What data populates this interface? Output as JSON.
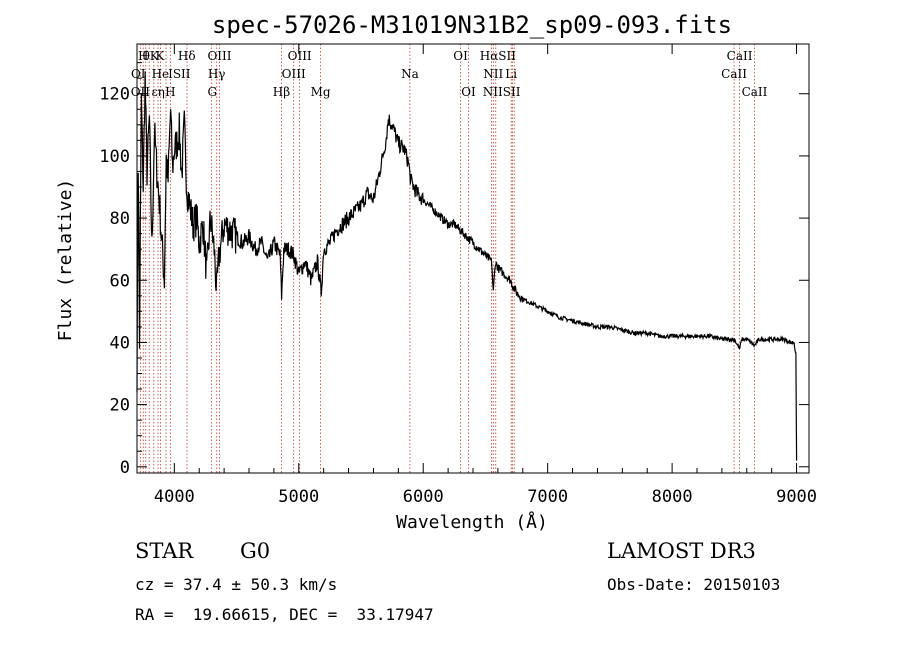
{
  "chart_data": {
    "type": "line",
    "title": "spec-57026-M31019N31B2_sp09-093.fits",
    "xlabel": "Wavelength (Å)",
    "ylabel": "Flux (relative)",
    "xlim": [
      3700,
      9100
    ],
    "ylim": [
      -2,
      136
    ],
    "xticks": [
      4000,
      5000,
      6000,
      7000,
      8000,
      9000
    ],
    "yticks": [
      0,
      20,
      40,
      60,
      80,
      100,
      120
    ],
    "series": [
      {
        "name": "flux",
        "x": [
          3700,
          3710,
          3720,
          3735,
          3750,
          3765,
          3780,
          3800,
          3820,
          3840,
          3860,
          3880,
          3900,
          3920,
          3935,
          3950,
          3970,
          3985,
          4000,
          4020,
          4040,
          4060,
          4080,
          4100,
          4120,
          4150,
          4180,
          4200,
          4230,
          4260,
          4290,
          4320,
          4340,
          4360,
          4400,
          4450,
          4500,
          4550,
          4600,
          4650,
          4700,
          4750,
          4800,
          4850,
          4862,
          4880,
          4920,
          4960,
          5000,
          5050,
          5100,
          5150,
          5180,
          5200,
          5250,
          5300,
          5350,
          5400,
          5450,
          5500,
          5550,
          5600,
          5650,
          5700,
          5720,
          5750,
          5800,
          5850,
          5880,
          5900,
          5950,
          6000,
          6050,
          6100,
          6150,
          6200,
          6250,
          6300,
          6350,
          6400,
          6450,
          6500,
          6550,
          6563,
          6580,
          6600,
          6650,
          6700,
          6750,
          6800,
          6900,
          7000,
          7100,
          7200,
          7300,
          7400,
          7500,
          7600,
          7700,
          7800,
          7900,
          8000,
          8100,
          8200,
          8300,
          8400,
          8500,
          8542,
          8560,
          8600,
          8662,
          8700,
          8800,
          8900,
          8950,
          8980,
          8995,
          9000
        ],
        "y": [
          30,
          98,
          40,
          118,
          90,
          125,
          95,
          112,
          70,
          108,
          95,
          85,
          72,
          60,
          100,
          92,
          115,
          96,
          102,
          104,
          108,
          94,
          110,
          90,
          85,
          78,
          80,
          72,
          78,
          62,
          80,
          70,
          56,
          68,
          78,
          76,
          74,
          72,
          74,
          70,
          72,
          66,
          72,
          68,
          55,
          70,
          70,
          68,
          62,
          66,
          60,
          66,
          56,
          70,
          72,
          76,
          78,
          80,
          82,
          84,
          88,
          86,
          95,
          105,
          112,
          110,
          104,
          102,
          98,
          92,
          88,
          86,
          84,
          82,
          80,
          78,
          78,
          76,
          74,
          72,
          70,
          68,
          66,
          56,
          66,
          64,
          62,
          60,
          56,
          54,
          52,
          50,
          48,
          47,
          46,
          45,
          45,
          44,
          43,
          43,
          42,
          42,
          42,
          42,
          42,
          41,
          41,
          38,
          41,
          41,
          39,
          41,
          41,
          41,
          40,
          40,
          36,
          2
        ]
      }
    ],
    "lines_row1": [
      {
        "label": "H",
        "x": 3750
      },
      {
        "label": "θK",
        "x": 3810
      },
      {
        "label": "K",
        "x": 3885
      },
      {
        "label": "Hδ",
        "x": 4100
      },
      {
        "label": "OIII",
        "x": 4363
      },
      {
        "label": "OIII",
        "x": 5007
      },
      {
        "label": "OI",
        "x": 6300
      },
      {
        "label": "HαSII",
        "x": 6600
      }
    ],
    "lines_row2": [
      {
        "label": "OI",
        "x": 3710
      },
      {
        "label": "He",
        "x": 3888
      },
      {
        "label": "ISII",
        "x": 4040
      },
      {
        "label": "Hγ",
        "x": 4340
      },
      {
        "label": "OIII",
        "x": 4959
      },
      {
        "label": "Na",
        "x": 5893
      },
      {
        "label": "NII",
        "x": 6563
      },
      {
        "label": "Li",
        "x": 6707
      }
    ],
    "lines_row3": [
      {
        "label": "OII",
        "x": 3727
      },
      {
        "label": "εη",
        "x": 3870
      },
      {
        "label": "H",
        "x": 3968
      },
      {
        "label": "G",
        "x": 4305
      },
      {
        "label": "Hβ",
        "x": 4861
      },
      {
        "label": "Mg",
        "x": 5175
      },
      {
        "label": "OI",
        "x": 6364
      },
      {
        "label": "NIISII",
        "x": 6630
      }
    ],
    "lines_calcium": [
      {
        "label": "CaII",
        "x": 8498,
        "row": 2
      },
      {
        "label": "CaII",
        "x": 8542,
        "row": 1
      },
      {
        "label": "CaII",
        "x": 8662,
        "row": 3
      }
    ],
    "line_positions": [
      3727,
      3750,
      3770,
      3798,
      3835,
      3869,
      3889,
      3933,
      3968,
      4102,
      4300,
      4341,
      4363,
      4861,
      4959,
      5007,
      5175,
      5893,
      6300,
      6364,
      6548,
      6563,
      6583,
      6707,
      6716,
      6731,
      8498,
      8542,
      8662
    ]
  },
  "info": {
    "class": "STAR",
    "subclass": "G0",
    "survey": "LAMOST DR3",
    "cz": "cz = 37.4 ± 50.3 km/s",
    "obs_date": "Obs-Date: 20150103",
    "radec": "RA =  19.66615, DEC =  33.17947"
  },
  "colors": {
    "axis": "#000000",
    "spectrum": "#000000",
    "line_marker": "#c0392b"
  }
}
